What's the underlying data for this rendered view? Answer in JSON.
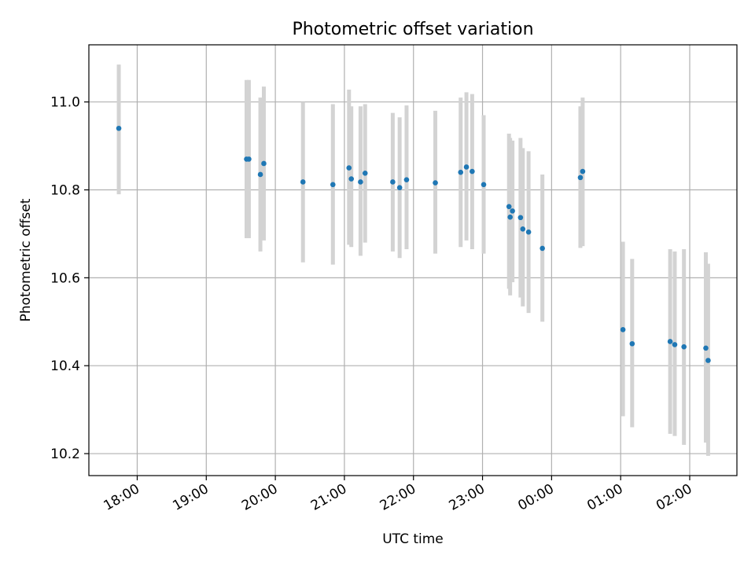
{
  "chart_data": {
    "type": "scatter",
    "title": "Photometric offset variation",
    "xlabel": "UTC time",
    "ylabel": "Photometric offset",
    "xlim": [
      "17:18",
      "02:41"
    ],
    "ylim": [
      10.15,
      11.13
    ],
    "x_ticks": [
      "18:00",
      "19:00",
      "20:00",
      "21:00",
      "22:00",
      "23:00",
      "00:00",
      "01:00",
      "02:00"
    ],
    "y_ticks": [
      10.2,
      10.4,
      10.6,
      10.8,
      11.0
    ],
    "grid": true,
    "error_bar_color": "#d3d3d3",
    "point_color": "#1f77b4",
    "series": [
      {
        "points": [
          {
            "t": "17:44",
            "y": 10.94,
            "lo": 10.79,
            "hi": 11.085
          },
          {
            "t": "19:35",
            "y": 10.87,
            "lo": 10.69,
            "hi": 11.05
          },
          {
            "t": "19:37",
            "y": 10.87,
            "lo": 10.69,
            "hi": 11.05
          },
          {
            "t": "19:47",
            "y": 10.835,
            "lo": 10.66,
            "hi": 11.01
          },
          {
            "t": "19:50",
            "y": 10.86,
            "lo": 10.685,
            "hi": 11.035
          },
          {
            "t": "20:24",
            "y": 10.818,
            "lo": 10.635,
            "hi": 11.0
          },
          {
            "t": "20:50",
            "y": 10.812,
            "lo": 10.63,
            "hi": 10.995
          },
          {
            "t": "21:04",
            "y": 10.85,
            "lo": 10.675,
            "hi": 11.028
          },
          {
            "t": "21:06",
            "y": 10.825,
            "lo": 10.67,
            "hi": 10.99
          },
          {
            "t": "21:14",
            "y": 10.818,
            "lo": 10.65,
            "hi": 10.99
          },
          {
            "t": "21:18",
            "y": 10.838,
            "lo": 10.68,
            "hi": 10.995
          },
          {
            "t": "21:42",
            "y": 10.818,
            "lo": 10.66,
            "hi": 10.975
          },
          {
            "t": "21:48",
            "y": 10.805,
            "lo": 10.645,
            "hi": 10.965
          },
          {
            "t": "21:54",
            "y": 10.823,
            "lo": 10.665,
            "hi": 10.992
          },
          {
            "t": "22:19",
            "y": 10.816,
            "lo": 10.655,
            "hi": 10.98
          },
          {
            "t": "22:41",
            "y": 10.84,
            "lo": 10.67,
            "hi": 11.01
          },
          {
            "t": "22:46",
            "y": 10.852,
            "lo": 10.685,
            "hi": 11.022
          },
          {
            "t": "22:51",
            "y": 10.842,
            "lo": 10.665,
            "hi": 11.018
          },
          {
            "t": "23:01",
            "y": 10.812,
            "lo": 10.655,
            "hi": 10.97
          },
          {
            "t": "23:23",
            "y": 10.762,
            "lo": 10.575,
            "hi": 10.928
          },
          {
            "t": "23:24",
            "y": 10.738,
            "lo": 10.56,
            "hi": 10.918
          },
          {
            "t": "23:26",
            "y": 10.752,
            "lo": 10.59,
            "hi": 10.912
          },
          {
            "t": "23:33",
            "y": 10.737,
            "lo": 10.555,
            "hi": 10.918
          },
          {
            "t": "23:35",
            "y": 10.711,
            "lo": 10.535,
            "hi": 10.895
          },
          {
            "t": "23:40",
            "y": 10.704,
            "lo": 10.52,
            "hi": 10.888
          },
          {
            "t": "23:52",
            "y": 10.667,
            "lo": 10.5,
            "hi": 10.835
          },
          {
            "t": "00:25",
            "y": 10.828,
            "lo": 10.668,
            "hi": 10.99
          },
          {
            "t": "00:27",
            "y": 10.842,
            "lo": 10.672,
            "hi": 11.01
          },
          {
            "t": "01:02",
            "y": 10.482,
            "lo": 10.285,
            "hi": 10.682
          },
          {
            "t": "01:10",
            "y": 10.45,
            "lo": 10.26,
            "hi": 10.643
          },
          {
            "t": "01:43",
            "y": 10.455,
            "lo": 10.245,
            "hi": 10.665
          },
          {
            "t": "01:47",
            "y": 10.448,
            "lo": 10.24,
            "hi": 10.66
          },
          {
            "t": "01:55",
            "y": 10.443,
            "lo": 10.22,
            "hi": 10.665
          },
          {
            "t": "02:14",
            "y": 10.44,
            "lo": 10.225,
            "hi": 10.658
          },
          {
            "t": "02:16",
            "y": 10.412,
            "lo": 10.195,
            "hi": 10.632
          }
        ]
      }
    ]
  }
}
